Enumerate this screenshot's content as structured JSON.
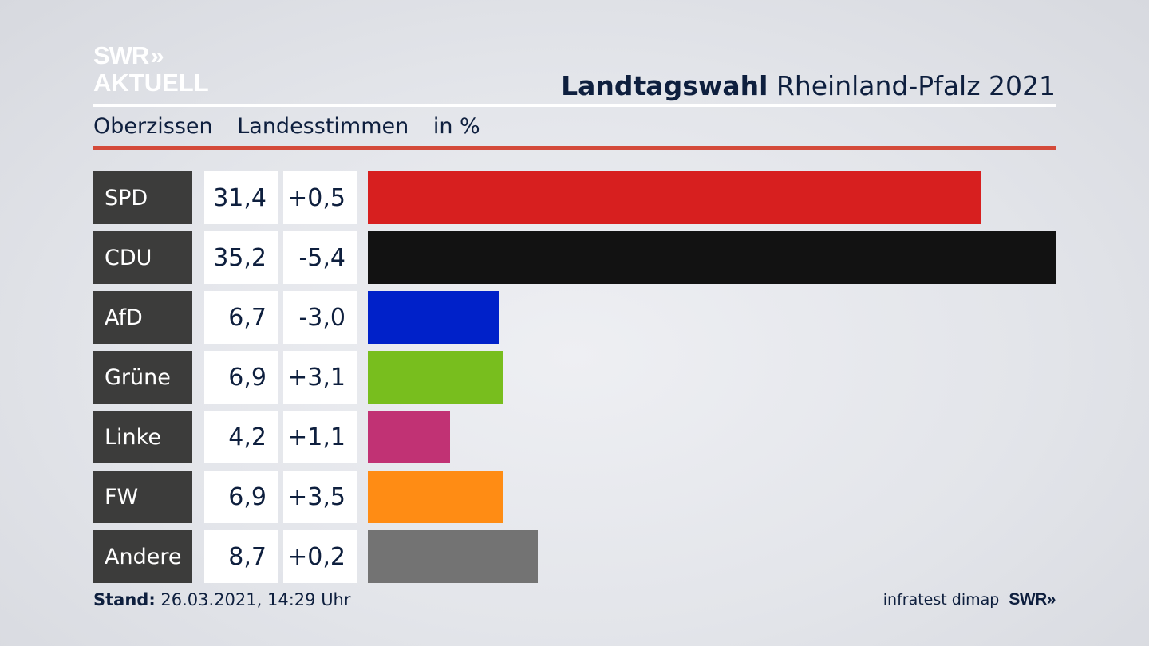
{
  "logo": {
    "line1": "SWR",
    "line1_chevrons": "»",
    "line2": "AKTUELL"
  },
  "header": {
    "title_bold": "Landtagswahl",
    "title_rest": "Rheinland-Pfalz 2021"
  },
  "subtitle": {
    "place": "Oberzissen",
    "measure": "Landesstimmen",
    "unit": "in %"
  },
  "colors": {
    "accent_rule": "#d44a3a",
    "label_bg": "#3c3c3b"
  },
  "chart_data": {
    "type": "bar",
    "orientation": "horizontal",
    "title": "Landtagswahl Rheinland-Pfalz 2021",
    "subtitle": "Oberzissen Landesstimmen in %",
    "categories": [
      "SPD",
      "CDU",
      "AfD",
      "Grüne",
      "Linke",
      "FW",
      "Andere"
    ],
    "values": [
      31.4,
      35.2,
      6.7,
      6.9,
      4.2,
      6.9,
      8.7
    ],
    "value_labels": [
      "31,4",
      "35,2",
      "6,7",
      "6,9",
      "4,2",
      "6,9",
      "8,7"
    ],
    "change_labels": [
      "+0,5",
      "-5,4",
      "-3,0",
      "+3,1",
      "+1,1",
      "+3,5",
      "+0,2"
    ],
    "colors": [
      "#d71f1f",
      "#121212",
      "#0021c9",
      "#78be1e",
      "#c13274",
      "#ff8c14",
      "#737373"
    ],
    "xlim": [
      0,
      35.2
    ]
  },
  "footer": {
    "stand_label": "Stand:",
    "stand_value": "26.03.2021, 14:29 Uhr",
    "source": "infratest dimap",
    "brand": "SWR»"
  }
}
